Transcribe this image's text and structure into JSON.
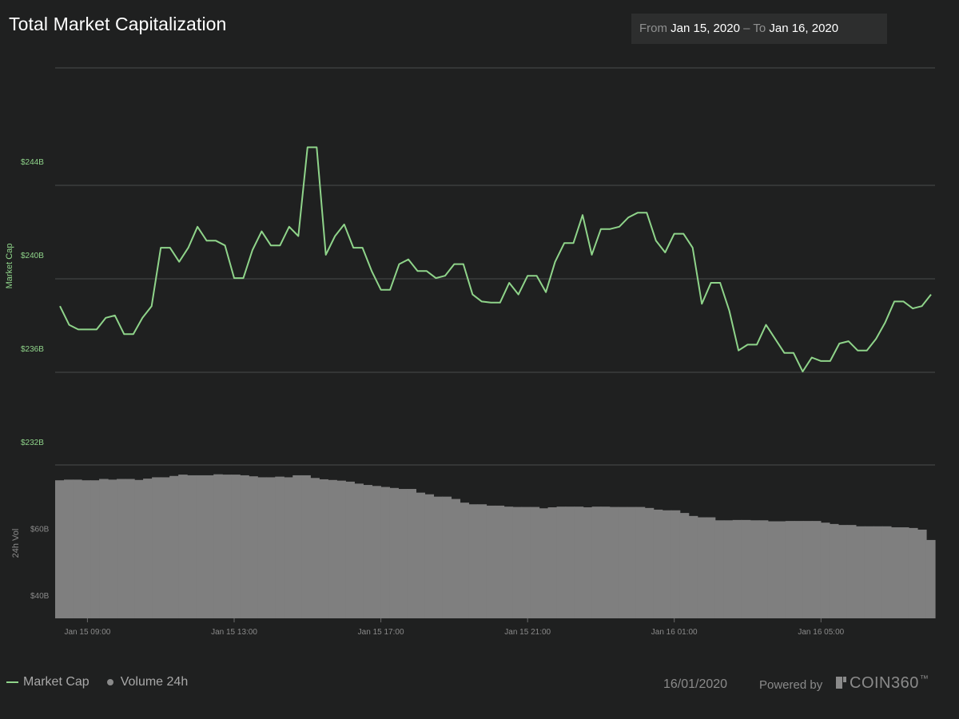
{
  "title": "Total Market Capitalization",
  "date_range": {
    "from_label": "From",
    "from_value": "Jan 15, 2020",
    "separator": "–",
    "to_label": "To",
    "to_value": "Jan 16, 2020"
  },
  "legend": {
    "market_cap": "Market Cap",
    "volume": "Volume 24h"
  },
  "footer": {
    "date": "16/01/2020",
    "powered_by": "Powered by",
    "brand": "COIN360",
    "trademark": "™"
  },
  "colors": {
    "background": "#1f2020",
    "line": "#8fd48a",
    "volume": "#7f7f7f",
    "grid": "#4a4b4b"
  },
  "chart_data": [
    {
      "type": "line",
      "series": [
        {
          "name": "Market Cap",
          "color": "#8fd48a"
        }
      ],
      "ylabel": "Market Cap",
      "y_tick_labels": [
        "$244B",
        "$240B",
        "$236B",
        "$232B"
      ],
      "y_ticks": [
        244,
        240,
        236,
        232
      ],
      "ylim": [
        231,
        248
      ],
      "grid": true,
      "x_tick_labels": [
        "Jan 15 09:00",
        "Jan 15 13:00",
        "Jan 15 17:00",
        "Jan 15 21:00",
        "Jan 16 01:00",
        "Jan 16 05:00"
      ],
      "x_start": "Jan 15 08:15",
      "x_step_minutes": 15,
      "values": [
        237.8,
        237.0,
        236.8,
        236.8,
        236.8,
        237.3,
        237.4,
        236.6,
        236.6,
        237.3,
        237.8,
        240.3,
        240.3,
        239.7,
        240.3,
        241.2,
        240.6,
        240.6,
        240.4,
        239.0,
        239.0,
        240.2,
        241.0,
        240.4,
        240.4,
        241.2,
        240.8,
        244.6,
        244.6,
        240.0,
        240.8,
        241.3,
        240.3,
        240.3,
        239.3,
        238.5,
        238.5,
        239.6,
        239.8,
        239.3,
        239.3,
        239.0,
        239.1,
        239.6,
        239.6,
        238.3,
        238.0,
        237.95,
        237.95,
        238.8,
        238.3,
        239.1,
        239.1,
        238.4,
        239.7,
        240.5,
        240.5,
        241.7,
        240.0,
        241.1,
        241.1,
        241.2,
        241.6,
        241.8,
        241.8,
        240.6,
        240.1,
        240.9,
        240.9,
        240.3,
        237.9,
        238.8,
        238.8,
        237.6,
        235.9,
        236.15,
        236.15,
        237.0,
        236.4,
        235.8,
        235.8,
        235.0,
        235.6,
        235.45,
        235.45,
        236.2,
        236.3,
        235.9,
        235.9,
        236.4,
        237.1,
        238.0,
        238.0,
        237.7,
        237.8,
        238.3
      ]
    },
    {
      "type": "bar",
      "series": [
        {
          "name": "Volume 24h",
          "color": "#7f7f7f"
        }
      ],
      "ylabel": "24h Vol",
      "y_tick_labels": [
        "$60B",
        "$40B"
      ],
      "y_ticks": [
        60,
        40
      ],
      "ylim": [
        33,
        79
      ],
      "values": [
        74.4,
        74.6,
        74.6,
        74.4,
        74.4,
        74.8,
        74.6,
        74.8,
        74.8,
        74.5,
        74.9,
        75.3,
        75.3,
        75.7,
        76.1,
        75.9,
        75.9,
        75.9,
        76.2,
        76.1,
        76.1,
        75.9,
        75.6,
        75.3,
        75.3,
        75.5,
        75.3,
        75.9,
        75.9,
        75.1,
        74.7,
        74.5,
        74.3,
        74.0,
        73.4,
        73.0,
        72.7,
        72.4,
        72.1,
        71.8,
        71.8,
        70.7,
        70.2,
        69.5,
        69.5,
        68.8,
        67.7,
        67.2,
        67.2,
        66.8,
        66.8,
        66.5,
        66.4,
        66.4,
        66.4,
        66.0,
        66.3,
        66.5,
        66.5,
        66.5,
        66.3,
        66.5,
        66.5,
        66.4,
        66.4,
        66.4,
        66.4,
        66.1,
        65.6,
        65.4,
        65.4,
        64.6,
        63.7,
        63.3,
        63.3,
        62.4,
        62.4,
        62.5,
        62.5,
        62.4,
        62.4,
        62.1,
        62.1,
        62.2,
        62.2,
        62.2,
        62.2,
        61.7,
        61.3,
        61.0,
        61.0,
        60.6,
        60.6,
        60.6,
        60.6,
        60.3,
        60.3,
        60.1,
        59.6,
        56.5
      ]
    }
  ]
}
